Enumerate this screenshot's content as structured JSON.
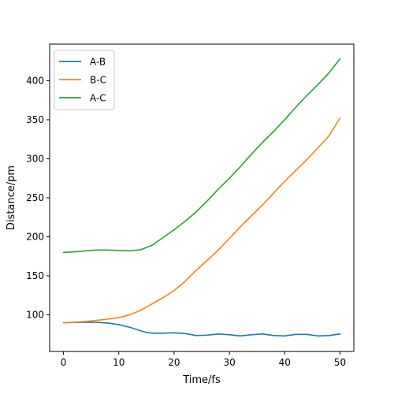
{
  "chart_data": {
    "type": "line",
    "title": "",
    "xlabel": "Time/fs",
    "ylabel": "Distance/pm",
    "xlim": [
      -2.5,
      52.5
    ],
    "ylim": [
      53.1,
      446.9
    ],
    "xticks": [
      0,
      10,
      20,
      30,
      40,
      50
    ],
    "yticks": [
      100,
      150,
      200,
      250,
      300,
      350,
      400
    ],
    "grid": false,
    "legend_position": "top-left",
    "series": [
      {
        "name": "A-B",
        "color": "#1f77b4",
        "x": [
          0,
          2,
          4,
          6,
          8,
          10,
          12,
          14,
          15,
          16,
          18,
          20,
          22,
          24,
          26,
          28,
          30,
          32,
          34,
          36,
          38,
          40,
          42,
          44,
          46,
          48,
          50
        ],
        "y": [
          90,
          90.3,
          90.5,
          90.4,
          89.5,
          87.5,
          84,
          79.5,
          77.5,
          76.5,
          76.5,
          77,
          76,
          73.5,
          74,
          75.5,
          74.5,
          73,
          74.5,
          75.5,
          73.5,
          73,
          75,
          75,
          73,
          73.5,
          75.5
        ]
      },
      {
        "name": "B-C",
        "color": "#ff7f0e",
        "x": [
          0,
          2,
          4,
          6,
          8,
          10,
          12,
          14,
          16,
          18,
          20,
          22,
          24,
          26,
          28,
          30,
          32,
          34,
          36,
          38,
          40,
          42,
          44,
          46,
          48,
          50
        ],
        "y": [
          90,
          90.5,
          91.5,
          93,
          94.5,
          96.5,
          100,
          106,
          114,
          122,
          131,
          143,
          157,
          170,
          183,
          198,
          213,
          227,
          241,
          256,
          271,
          285,
          299,
          314,
          329,
          352
        ]
      },
      {
        "name": "A-C",
        "color": "#2ca02c",
        "x": [
          0,
          2,
          4,
          6,
          8,
          10,
          12,
          14,
          16,
          18,
          20,
          22,
          24,
          26,
          28,
          30,
          32,
          34,
          36,
          38,
          40,
          42,
          44,
          46,
          48,
          50
        ],
        "y": [
          180,
          180.8,
          182,
          183,
          183,
          182.5,
          182,
          183.5,
          189,
          199,
          209,
          220,
          232,
          246,
          261,
          275,
          290,
          306,
          321,
          335,
          350,
          366,
          381,
          395,
          410,
          428
        ]
      }
    ]
  }
}
